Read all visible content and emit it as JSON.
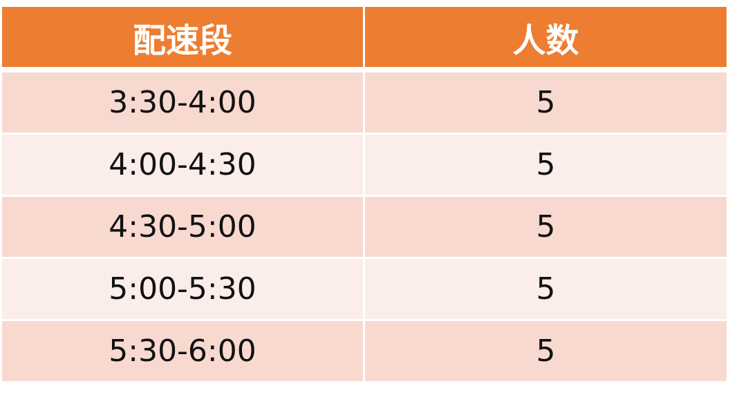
{
  "chart_data": {
    "type": "table",
    "columns": [
      "配速段",
      "人数"
    ],
    "rows": [
      [
        "3:30-4:00",
        "5"
      ],
      [
        "4:00-4:30",
        "5"
      ],
      [
        "4:30-5:00",
        "5"
      ],
      [
        "5:00-5:30",
        "5"
      ],
      [
        "5:30-6:00",
        "5"
      ]
    ],
    "colors": {
      "header": "#ED7D31",
      "row_odd": "#F8D9D0",
      "row_even": "#FBEDE9"
    }
  }
}
